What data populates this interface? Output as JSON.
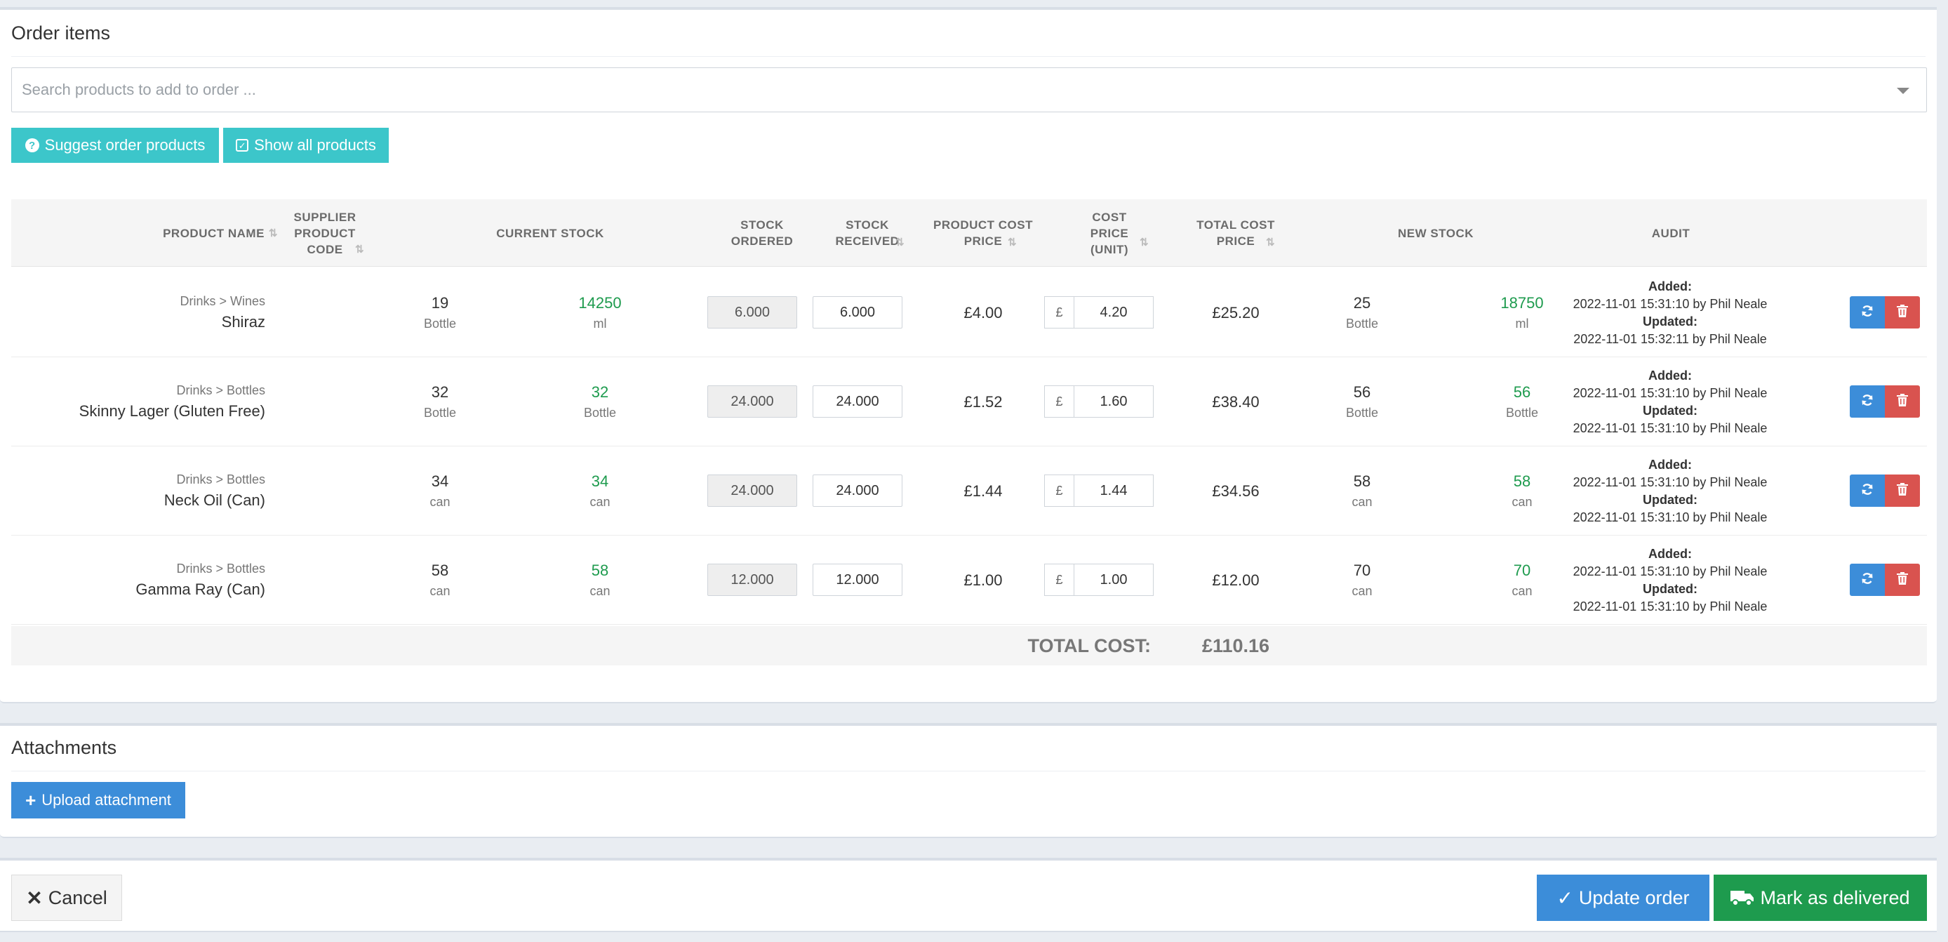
{
  "order_items": {
    "title": "Order items",
    "search_placeholder": "Search products to add to order ...",
    "suggest_label": "Suggest order products",
    "show_all_label": "Show all products",
    "headers": {
      "product_name": "PRODUCT NAME",
      "supplier_code": "SUPPLIER PRODUCT CODE",
      "current_stock": "CURRENT STOCK",
      "stock_ordered": "STOCK ORDERED",
      "stock_received": "STOCK RECEIVED",
      "product_cost_price": "PRODUCT COST PRICE",
      "cost_price_unit": "COST PRICE (UNIT)",
      "total_cost_price": "TOTAL COST PRICE",
      "new_stock": "NEW STOCK",
      "audit": "AUDIT"
    },
    "rows": [
      {
        "category": "Drinks > Wines",
        "name": "Shiraz",
        "stock_qty": "19",
        "stock_unit": "Bottle",
        "stock_alt_qty": "14250",
        "stock_alt_unit": "ml",
        "ordered": "6.000",
        "received": "6.000",
        "product_cost": "£4.00",
        "currency": "£",
        "unit_cost": "4.20",
        "total_cost": "£25.20",
        "new_qty": "25",
        "new_unit": "Bottle",
        "new_alt_qty": "18750",
        "new_alt_unit": "ml",
        "added_label": "Added:",
        "added": "2022-11-01 15:31:10 by Phil Neale",
        "updated_label": "Updated:",
        "updated": "2022-11-01 15:32:11 by Phil Neale"
      },
      {
        "category": "Drinks > Bottles",
        "name": "Skinny Lager (Gluten Free)",
        "stock_qty": "32",
        "stock_unit": "Bottle",
        "stock_alt_qty": "32",
        "stock_alt_unit": "Bottle",
        "ordered": "24.000",
        "received": "24.000",
        "product_cost": "£1.52",
        "currency": "£",
        "unit_cost": "1.60",
        "total_cost": "£38.40",
        "new_qty": "56",
        "new_unit": "Bottle",
        "new_alt_qty": "56",
        "new_alt_unit": "Bottle",
        "added_label": "Added:",
        "added": "2022-11-01 15:31:10 by Phil Neale",
        "updated_label": "Updated:",
        "updated": "2022-11-01 15:31:10 by Phil Neale"
      },
      {
        "category": "Drinks > Bottles",
        "name": "Neck Oil (Can)",
        "stock_qty": "34",
        "stock_unit": "can",
        "stock_alt_qty": "34",
        "stock_alt_unit": "can",
        "ordered": "24.000",
        "received": "24.000",
        "product_cost": "£1.44",
        "currency": "£",
        "unit_cost": "1.44",
        "total_cost": "£34.56",
        "new_qty": "58",
        "new_unit": "can",
        "new_alt_qty": "58",
        "new_alt_unit": "can",
        "added_label": "Added:",
        "added": "2022-11-01 15:31:10 by Phil Neale",
        "updated_label": "Updated:",
        "updated": "2022-11-01 15:31:10 by Phil Neale"
      },
      {
        "category": "Drinks > Bottles",
        "name": "Gamma Ray (Can)",
        "stock_qty": "58",
        "stock_unit": "can",
        "stock_alt_qty": "58",
        "stock_alt_unit": "can",
        "ordered": "12.000",
        "received": "12.000",
        "product_cost": "£1.00",
        "currency": "£",
        "unit_cost": "1.00",
        "total_cost": "£12.00",
        "new_qty": "70",
        "new_unit": "can",
        "new_alt_qty": "70",
        "new_alt_unit": "can",
        "added_label": "Added:",
        "added": "2022-11-01 15:31:10 by Phil Neale",
        "updated_label": "Updated:",
        "updated": "2022-11-01 15:31:10 by Phil Neale"
      }
    ],
    "total_label": "TOTAL COST:",
    "total_value": "£110.16"
  },
  "attachments": {
    "title": "Attachments",
    "upload_label": "Upload attachment"
  },
  "actions": {
    "cancel_label": "Cancel",
    "update_label": "Update order",
    "delivered_label": "Mark as delivered"
  },
  "colors": {
    "teal": "#3cc6ca",
    "blue": "#3c8dd9",
    "green": "#1e9b4e",
    "red": "#d9534f"
  },
  "icons": {
    "suggest": "question-circle-icon",
    "show_all": "check-square-icon",
    "refresh": "refresh-icon",
    "delete": "trash-icon",
    "upload": "plus-icon",
    "cancel": "close-icon",
    "update": "check-icon",
    "delivered": "truck-icon",
    "sort": "sort-icon",
    "dropdown": "chevron-down-icon"
  }
}
